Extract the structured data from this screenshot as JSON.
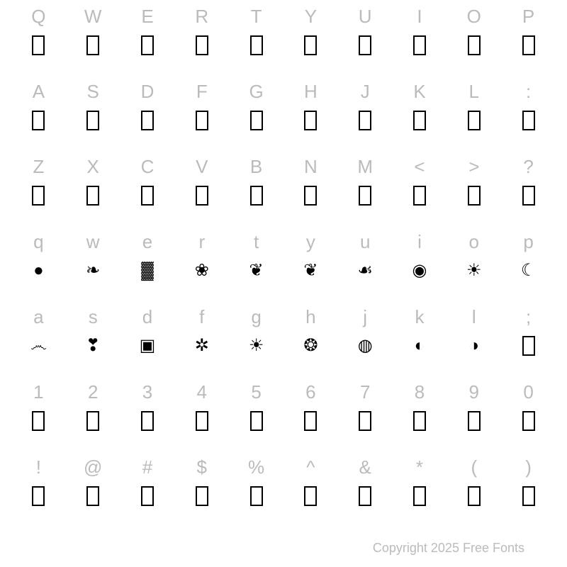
{
  "footer": "Copyright 2025 Free Fonts",
  "colors": {
    "label": "#bbbbbb",
    "box_border": "#000000",
    "background": "#ffffff"
  },
  "font_sizes": {
    "label": 26,
    "footer": 18,
    "ornament": 24
  },
  "rows": [
    {
      "labels": [
        "Q",
        "W",
        "E",
        "R",
        "T",
        "Y",
        "U",
        "I",
        "O",
        "P"
      ],
      "glyphs": [
        "box",
        "box",
        "box",
        "box",
        "box",
        "box",
        "box",
        "box",
        "box",
        "box"
      ]
    },
    {
      "labels": [
        "A",
        "S",
        "D",
        "F",
        "G",
        "H",
        "J",
        "K",
        "L",
        ":"
      ],
      "glyphs": [
        "box",
        "box",
        "box",
        "box",
        "box",
        "box",
        "box",
        "box",
        "box",
        "box"
      ]
    },
    {
      "labels": [
        "Z",
        "X",
        "C",
        "V",
        "B",
        "N",
        "M",
        "<",
        ">",
        "?"
      ],
      "glyphs": [
        "box",
        "box",
        "box",
        "box",
        "box",
        "box",
        "box",
        "box",
        "box",
        "box"
      ]
    },
    {
      "labels": [
        "q",
        "w",
        "e",
        "r",
        "t",
        "y",
        "u",
        "i",
        "o",
        "p"
      ],
      "glyphs": [
        "orn-sphere",
        "orn-oak",
        "orn-block",
        "orn-fleur",
        "orn-scroll",
        "orn-scroll2",
        "orn-shell",
        "orn-eye",
        "orn-moon",
        "orn-moon2"
      ]
    },
    {
      "labels": [
        "a",
        "s",
        "d",
        "f",
        "g",
        "h",
        "j",
        "k",
        "l",
        ";"
      ],
      "glyphs": [
        "orn-swirl",
        "orn-damask",
        "orn-frame",
        "orn-fan",
        "orn-sun",
        "orn-sun2",
        "orn-disc",
        "orn-yin",
        "orn-wave",
        "box"
      ]
    },
    {
      "labels": [
        "1",
        "2",
        "3",
        "4",
        "5",
        "6",
        "7",
        "8",
        "9",
        "0"
      ],
      "glyphs": [
        "box",
        "box",
        "box",
        "box",
        "box",
        "box",
        "box",
        "box",
        "box",
        "box"
      ]
    },
    {
      "labels": [
        "!",
        "@",
        "#",
        "$",
        "%",
        "^",
        "&",
        "*",
        "(",
        ")"
      ],
      "glyphs": [
        "box",
        "box",
        "box",
        "box",
        "box",
        "box",
        "box",
        "box",
        "box",
        "box"
      ]
    }
  ],
  "ornaments": {
    "orn-sphere": "●",
    "orn-oak": "❧",
    "orn-block": "▓",
    "orn-fleur": "❀",
    "orn-scroll": "❦",
    "orn-scroll2": "❦",
    "orn-shell": "☙",
    "orn-eye": "◉",
    "orn-moon": "☀",
    "orn-moon2": "☾",
    "orn-swirl": "෴",
    "orn-damask": "❣",
    "orn-frame": "▣",
    "orn-fan": "✲",
    "orn-sun": "☀",
    "orn-sun2": "❂",
    "orn-disc": "◍",
    "orn-yin": "◐",
    "orn-wave": "◑"
  }
}
